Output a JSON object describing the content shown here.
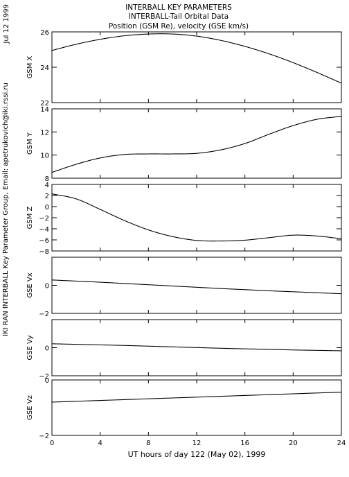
{
  "header": {
    "line1": "INTERBALL KEY PARAMETERS",
    "line2": "INTERBALL-Tail Orbital Data",
    "line3": "Position (GSM Re), velocity (GSE km/s)"
  },
  "side": {
    "date": "Jul 12 1999",
    "credit": "IKI RAN INTERBALL Key Parameter Group, Email: apetrukovich@iki.rssi.ru"
  },
  "chart_data": {
    "type": "line",
    "xlabel": "UT hours of day 122 (May 02), 1999",
    "xlim": [
      0,
      24
    ],
    "xticks": [
      0,
      4,
      8,
      12,
      16,
      20,
      24
    ],
    "x": [
      0,
      2,
      4,
      6,
      8,
      10,
      12,
      14,
      16,
      18,
      20,
      22,
      24
    ],
    "panels": [
      {
        "ylabel": "GSM X",
        "ylim": [
          22,
          26
        ],
        "yticks": [
          22,
          24,
          26
        ],
        "values": [
          24.95,
          25.3,
          25.58,
          25.78,
          25.88,
          25.88,
          25.76,
          25.52,
          25.18,
          24.76,
          24.26,
          23.7,
          23.1
        ]
      },
      {
        "ylabel": "GSM Y",
        "ylim": [
          8,
          14
        ],
        "yticks": [
          8,
          10,
          12,
          14
        ],
        "values": [
          8.5,
          9.2,
          9.75,
          10.05,
          10.1,
          10.1,
          10.15,
          10.45,
          11.0,
          11.8,
          12.55,
          13.1,
          13.35
        ]
      },
      {
        "ylabel": "GSM Z",
        "ylim": [
          -8,
          4
        ],
        "yticks": [
          -8,
          -6,
          -4,
          -2,
          0,
          2,
          4
        ],
        "values": [
          2.3,
          1.4,
          -0.5,
          -2.5,
          -4.2,
          -5.4,
          -6.1,
          -6.2,
          -6.05,
          -5.6,
          -5.15,
          -5.3,
          -5.8
        ]
      },
      {
        "ylabel": "GSE Vx",
        "ylim": [
          -2,
          2
        ],
        "yticks": [
          -2,
          0
        ],
        "values": [
          0.38,
          0.3,
          0.22,
          0.13,
          0.04,
          -0.05,
          -0.14,
          -0.23,
          -0.31,
          -0.39,
          -0.46,
          -0.53,
          -0.6
        ]
      },
      {
        "ylabel": "GSE Vy",
        "ylim": [
          -2,
          2
        ],
        "yticks": [
          -2,
          0
        ],
        "values": [
          0.28,
          0.24,
          0.2,
          0.16,
          0.11,
          0.06,
          0.01,
          -0.04,
          -0.08,
          -0.12,
          -0.16,
          -0.19,
          -0.22
        ]
      },
      {
        "ylabel": "GSE Vz",
        "ylim": [
          -2,
          0
        ],
        "yticks": [
          -2,
          0
        ],
        "values": [
          -0.8,
          -0.77,
          -0.74,
          -0.71,
          -0.68,
          -0.65,
          -0.62,
          -0.59,
          -0.56,
          -0.53,
          -0.5,
          -0.47,
          -0.44
        ]
      }
    ]
  }
}
